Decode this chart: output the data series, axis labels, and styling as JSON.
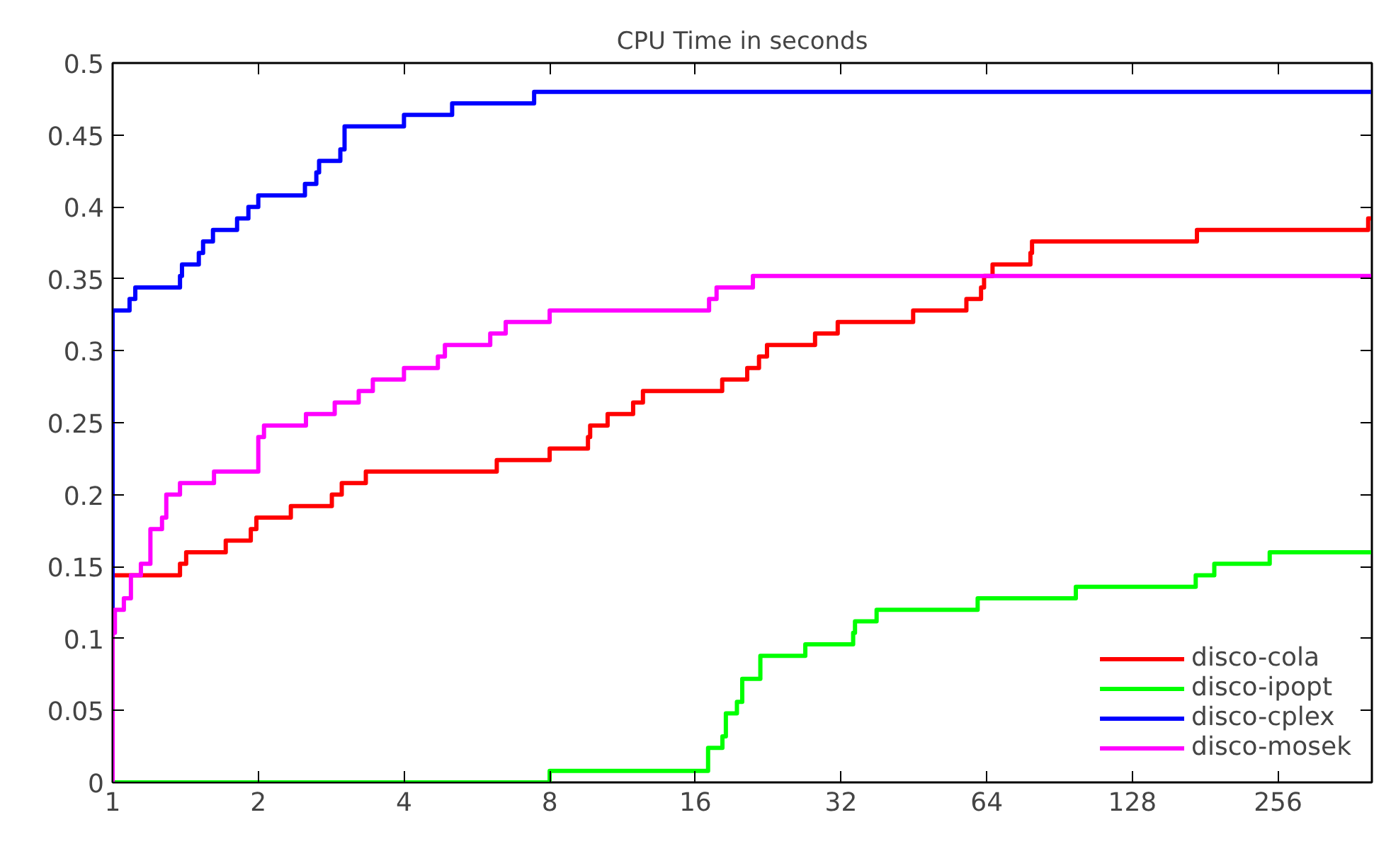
{
  "chart_data": {
    "type": "step",
    "title": "CPU Time in seconds",
    "log": "x",
    "grid": false,
    "legend": "bottom right",
    "marker": "none",
    "line_style": "solid",
    "xlim": [
      1,
      400
    ],
    "xticks": [
      1,
      2,
      4,
      8,
      16,
      32,
      64,
      128,
      256
    ],
    "ylim": [
      0,
      0.5
    ],
    "yticks": [
      0,
      0.05,
      0.1,
      0.15,
      0.2,
      0.25,
      0.3,
      0.35,
      0.4,
      0.45,
      0.5
    ],
    "series": [
      {
        "name": "disco-cola",
        "color": "#ff0000",
        "x": [
          1,
          1,
          1.378,
          1.419,
          1.713,
          1.93,
          1.982,
          2.335,
          2.838,
          2.975,
          3.336,
          6.22,
          8.0,
          9.6,
          9.7,
          10.54,
          11.9,
          12.47,
          18.18,
          20.48,
          21.66,
          22.5,
          28.28,
          31.5,
          45.1,
          58.1,
          62.3,
          63.2,
          65.8,
          78.8,
          79.4,
          174,
          393,
          400
        ],
        "values": [
          0,
          0.144,
          0.152,
          0.16,
          0.168,
          0.176,
          0.184,
          0.192,
          0.2,
          0.208,
          0.216,
          0.224,
          0.232,
          0.24,
          0.248,
          0.256,
          0.264,
          0.272,
          0.28,
          0.288,
          0.296,
          0.304,
          0.312,
          0.32,
          0.328,
          0.336,
          0.344,
          0.352,
          0.36,
          0.368,
          0.376,
          0.384,
          0.392,
          0.392
        ]
      },
      {
        "name": "disco-ipopt",
        "color": "#00ff00",
        "x": [
          1,
          8.0,
          17.0,
          18.2,
          18.5,
          19.5,
          20.0,
          21.8,
          27.0,
          33.9,
          34.2,
          37.9,
          61.3,
          97.8,
          173,
          189,
          246,
          400
        ],
        "values": [
          0,
          0.008,
          0.024,
          0.032,
          0.048,
          0.056,
          0.072,
          0.088,
          0.096,
          0.104,
          0.112,
          0.12,
          0.128,
          0.136,
          0.144,
          0.152,
          0.16,
          0.16
        ]
      },
      {
        "name": "disco-cplex",
        "color": "#0000ff",
        "x": [
          1,
          1,
          1.084,
          1.114,
          1.378,
          1.391,
          1.507,
          1.538,
          1.612,
          1.808,
          1.908,
          2.0,
          2.497,
          2.636,
          2.671,
          2.955,
          3.015,
          4.0,
          5.03,
          7.43,
          400
        ],
        "values": [
          0,
          0.328,
          0.336,
          0.344,
          0.352,
          0.36,
          0.368,
          0.376,
          0.384,
          0.392,
          0.4,
          0.408,
          0.416,
          0.424,
          0.432,
          0.44,
          0.456,
          0.464,
          0.472,
          0.48,
          0.48
        ]
      },
      {
        "name": "disco-mosek",
        "color": "#ff00ff",
        "x": [
          1,
          1,
          1.011,
          1.055,
          1.091,
          1.144,
          1.197,
          1.265,
          1.291,
          1.378,
          1.62,
          2.0,
          2.055,
          2.509,
          2.877,
          3.225,
          3.449,
          4.0,
          4.7,
          4.86,
          6.03,
          6.49,
          8.0,
          17.08,
          17.7,
          21.04,
          400
        ],
        "values": [
          0,
          0.104,
          0.12,
          0.128,
          0.144,
          0.152,
          0.176,
          0.184,
          0.2,
          0.208,
          0.216,
          0.24,
          0.248,
          0.256,
          0.264,
          0.272,
          0.28,
          0.288,
          0.296,
          0.304,
          0.312,
          0.32,
          0.328,
          0.336,
          0.344,
          0.352,
          0.352
        ]
      }
    ]
  }
}
